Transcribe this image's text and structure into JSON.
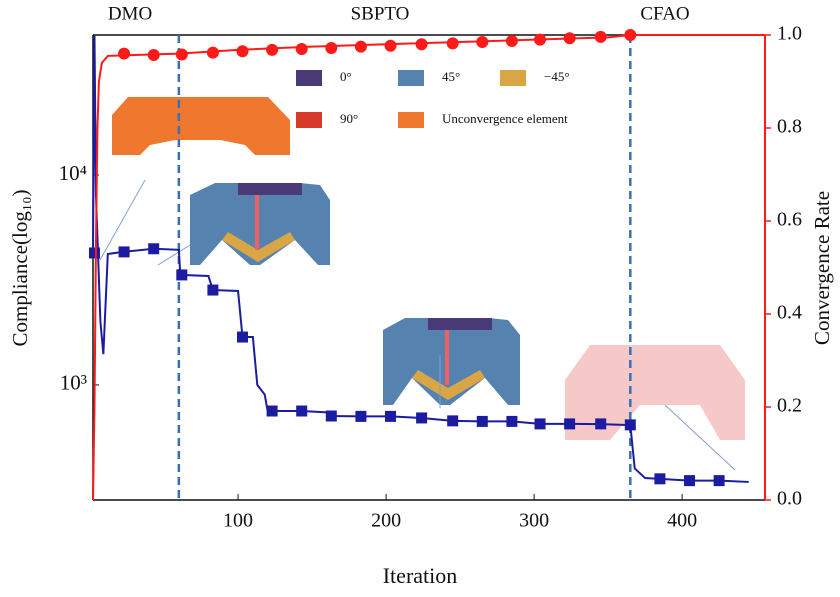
{
  "chart_data": {
    "type": "line",
    "phase_labels": [
      "DMO",
      "SBPTO",
      "CFAO"
    ],
    "phase_boundaries": [
      60,
      365
    ],
    "xlabel": "Iteration",
    "ylabel": "Compliance(log₁₀)",
    "y2label": "Convergence Rate",
    "xlim": [
      2,
      456
    ],
    "xticks": [
      100,
      200,
      300,
      400
    ],
    "ylim": [
      283,
      46400
    ],
    "ylog": true,
    "yticks": [
      {
        "value": 1000,
        "label": "10³"
      },
      {
        "value": 10000,
        "label": "10⁴"
      }
    ],
    "y2lim": [
      0,
      1
    ],
    "y2ticks": [
      {
        "value": 0,
        "label": "0.0"
      },
      0.2,
      0.4,
      0.6,
      0.8,
      {
        "value": 1,
        "label": "1.0"
      }
    ],
    "axis_color": "#111111",
    "y2_axis_color": "#ff1a1a",
    "phase_line_color": "#3a6fb8",
    "legend_items": [
      {
        "label": "0°",
        "color": "#4b3a78"
      },
      {
        "label": "45°",
        "color": "#5682b0"
      },
      {
        "label": "−45°",
        "color": "#d9a545"
      },
      {
        "label": "90°",
        "color": "#d83a2a"
      },
      {
        "label": "Unconvergence element",
        "color": "#f0782e"
      }
    ],
    "series": [
      {
        "color": "#1c1ca0",
        "axis": "y",
        "marker": null,
        "x": [
          2,
          3,
          4,
          7,
          9,
          12,
          22,
          43,
          60,
          61,
          80,
          83,
          100,
          103,
          110,
          113,
          118,
          120,
          143,
          160,
          163,
          183,
          203,
          224,
          245,
          265,
          285,
          304,
          324,
          345,
          360,
          365,
          368,
          375,
          385,
          405,
          425,
          445
        ],
        "values": [
          4250,
          46000,
          8000,
          2000,
          1400,
          4200,
          4300,
          4450,
          4400,
          3340,
          3300,
          2830,
          2800,
          1690,
          1690,
          1000,
          900,
          751,
          751,
          740,
          711,
          708,
          708,
          696,
          674,
          670,
          670,
          652,
          652,
          650,
          645,
          645,
          400,
          360,
          357,
          350,
          350,
          345
        ]
      },
      {
        "color": "#1c1ca0",
        "axis": "y",
        "marker": "square",
        "x": [
          3,
          23,
          43,
          62,
          83,
          103,
          123,
          143,
          163,
          183,
          203,
          224,
          245,
          265,
          285,
          304,
          324,
          345,
          365,
          385,
          405,
          425
        ],
        "values": [
          4250,
          4300,
          4450,
          3340,
          2830,
          1690,
          751,
          751,
          711,
          708,
          708,
          696,
          674,
          670,
          670,
          652,
          652,
          652,
          645,
          357,
          350,
          350
        ]
      },
      {
        "color": "#ff1a1a",
        "axis": "y2",
        "marker": null,
        "x": [
          2,
          3,
          4,
          5,
          6,
          8,
          12,
          30,
          60,
          100,
          150,
          200,
          250,
          300,
          350,
          365,
          366,
          456
        ],
        "values": [
          0,
          0.2,
          0.55,
          0.8,
          0.9,
          0.94,
          0.955,
          0.957,
          0.96,
          0.968,
          0.975,
          0.98,
          0.985,
          0.99,
          0.995,
          1.0,
          1.0,
          1.0
        ]
      },
      {
        "color": "#ff1a1a",
        "axis": "y2",
        "marker": "circle",
        "x": [
          23,
          43,
          62,
          83,
          103,
          123,
          143,
          163,
          183,
          203,
          224,
          245,
          265,
          285,
          304,
          324,
          345,
          365
        ],
        "values": [
          0.96,
          0.957,
          0.958,
          0.962,
          0.965,
          0.968,
          0.97,
          0.972,
          0.975,
          0.977,
          0.98,
          0.982,
          0.985,
          0.987,
          0.99,
          0.993,
          0.996,
          1.0
        ]
      }
    ]
  }
}
